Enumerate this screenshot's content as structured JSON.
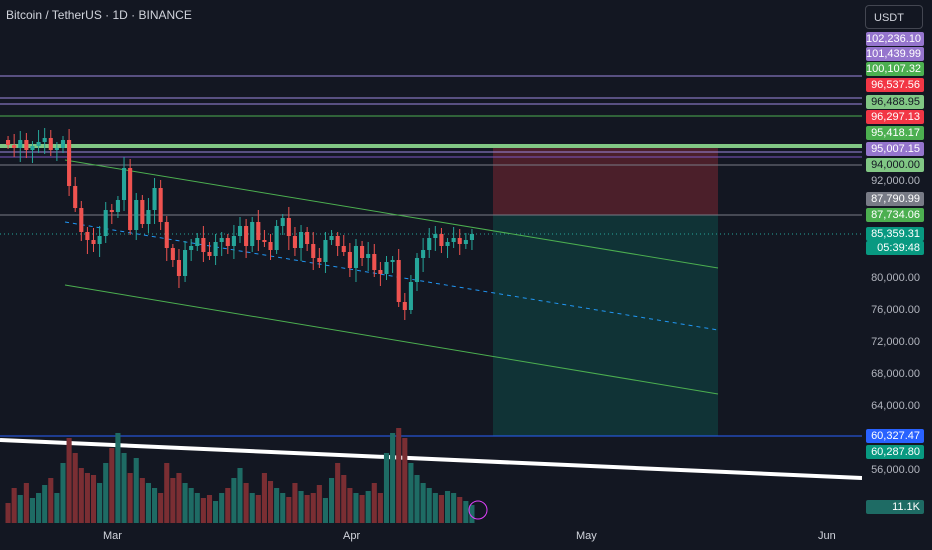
{
  "header": {
    "title": "Bitcoin / TetherUS · 1D · BINANCE",
    "currency": "USDT"
  },
  "price_axis": {
    "labels": [
      "102,236.10",
      "101,439.99",
      "100,107.32",
      "96,537.56",
      "96,488.95",
      "96,297.13",
      "95,418.17",
      "95,007.15",
      "94,000.00",
      "92,000.00",
      "87,790.99",
      "87,734.06",
      "85,359.31",
      "05:39:48",
      "80,000.00",
      "76,000.00",
      "72,000.00",
      "68,000.00",
      "64,000.00",
      "60,327.47",
      "60,287.80",
      "56,000.00",
      "11.1K"
    ]
  },
  "time_axis": {
    "labels": [
      "Mar",
      "Apr",
      "May",
      "Jun"
    ]
  }
}
